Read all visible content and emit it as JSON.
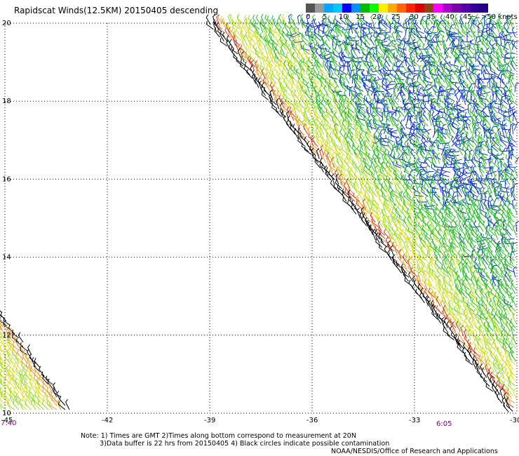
{
  "title": "Rapidscat Winds(12.5KM) 20150405 descending",
  "colorbar": {
    "labels": [
      "0",
      "5",
      "10",
      "15",
      "20",
      "25",
      "30",
      "35",
      "40",
      "45",
      ">50 knots"
    ],
    "colors": [
      "#555555",
      "#9a9a9a",
      "#00a8ff",
      "#00c8ff",
      "#0000ff",
      "#0090ff",
      "#00bb00",
      "#00ff00",
      "#ffee00",
      "#ffaa00",
      "#ff6600",
      "#ff2200",
      "#dd0000",
      "#8b4513",
      "#ff00ff",
      "#aa00cc",
      "#7700aa",
      "#5500aa",
      "#330099",
      "#220088"
    ]
  },
  "map": {
    "lon_range": [
      -45,
      -30
    ],
    "lat_range": [
      10,
      20
    ],
    "lon_ticks": [
      "-45",
      "-42",
      "-39",
      "-36",
      "-33",
      "-30"
    ],
    "lat_ticks": [
      "20",
      "18",
      "16",
      "14",
      "12",
      "10"
    ],
    "swath_edge": {
      "lon": [
        -39.0,
        -30.2
      ],
      "lat": [
        20.0,
        10.0
      ]
    }
  },
  "times": {
    "left": "7:40",
    "right": "6:05"
  },
  "note": "Note: 1) Times are GMT 2)Times along bottom correspond to measurement at 20N\n         3)Data buffer is 22 hrs from 20150405 4) Black circles indicate possible contamination",
  "credit": "NOAA/NESDIS/Office of Research and Applications"
}
